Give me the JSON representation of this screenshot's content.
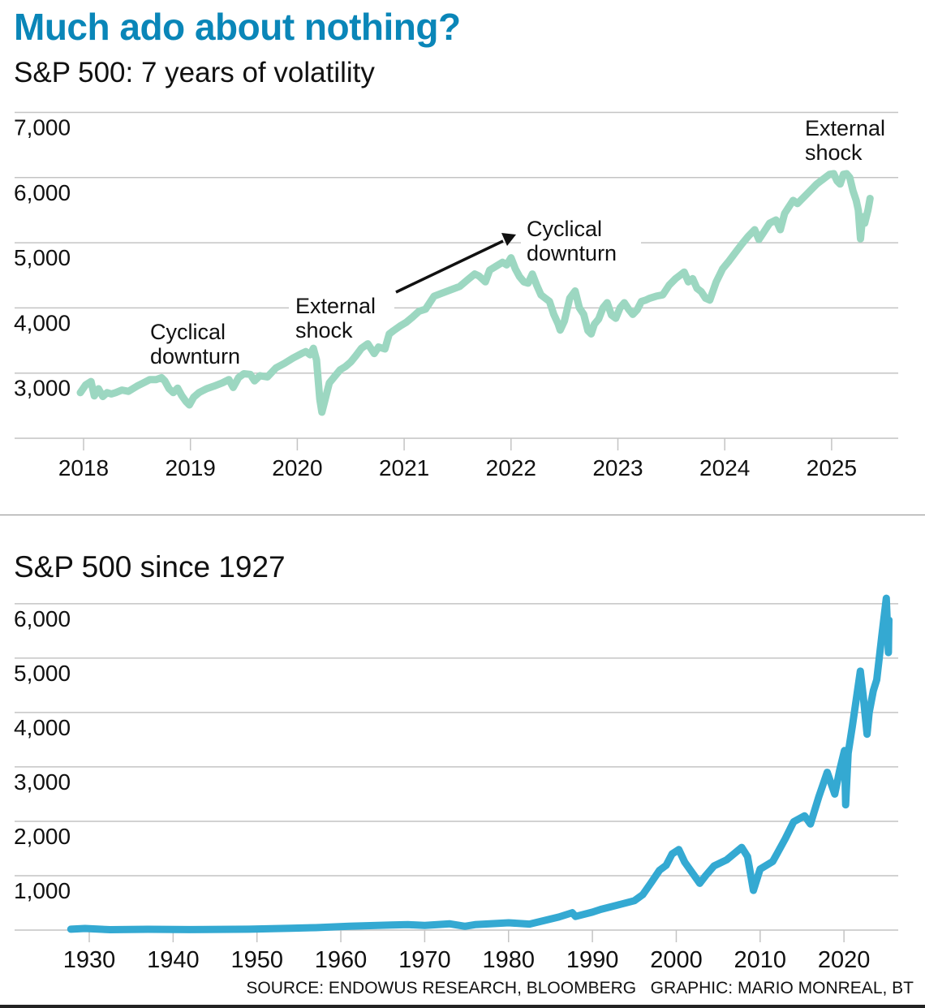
{
  "headline": "Much ado about nothing?",
  "footer": {
    "source": "SOURCE: ENDOWUS RESEARCH, BLOOMBERG",
    "graphic": "GRAPHIC: MARIO MONREAL, BT"
  },
  "colors": {
    "headline": "#0a86b8",
    "top_series": "#9cd7c1",
    "bottom_series": "#34a9d2",
    "gridline": "#c4c4c4",
    "text": "#111111"
  },
  "chart_data": [
    {
      "type": "line",
      "title": "S&P 500: 7 years of volatility",
      "xlabel": "",
      "ylabel": "",
      "grid": true,
      "legend": "none",
      "xlim": [
        2017.97,
        2025.38
      ],
      "ylim": [
        2000,
        7000
      ],
      "x_ticks": [
        2018,
        2019,
        2020,
        2021,
        2022,
        2023,
        2024,
        2025
      ],
      "x_tick_labels": [
        "2018",
        "2019",
        "2020",
        "2021",
        "2022",
        "2023",
        "2024",
        "2025"
      ],
      "y_ticks": [
        3000,
        4000,
        5000,
        6000,
        7000
      ],
      "y_tick_labels": [
        "3,000",
        "4,000",
        "5,000",
        "6,000",
        "7,000"
      ],
      "series": [
        {
          "name": "S&P 500",
          "x": [
            2017.97,
            2018.02,
            2018.07,
            2018.1,
            2018.14,
            2018.18,
            2018.22,
            2018.26,
            2018.3,
            2018.36,
            2018.42,
            2018.5,
            2018.56,
            2018.62,
            2018.68,
            2018.73,
            2018.76,
            2018.8,
            2018.84,
            2018.88,
            2018.92,
            2018.96,
            2018.99,
            2019.03,
            2019.08,
            2019.15,
            2019.22,
            2019.3,
            2019.36,
            2019.4,
            2019.45,
            2019.5,
            2019.56,
            2019.6,
            2019.65,
            2019.72,
            2019.8,
            2019.88,
            2019.96,
            2020.04,
            2020.08,
            2020.12,
            2020.15,
            2020.18,
            2020.21,
            2020.23,
            2020.26,
            2020.3,
            2020.35,
            2020.4,
            2020.45,
            2020.5,
            2020.55,
            2020.6,
            2020.66,
            2020.72,
            2020.76,
            2020.82,
            2020.86,
            2020.9,
            2020.96,
            2021.02,
            2021.08,
            2021.14,
            2021.2,
            2021.28,
            2021.36,
            2021.44,
            2021.52,
            2021.6,
            2021.66,
            2021.7,
            2021.76,
            2021.8,
            2021.86,
            2021.92,
            2021.96,
            2022.0,
            2022.04,
            2022.08,
            2022.12,
            2022.16,
            2022.2,
            2022.24,
            2022.28,
            2022.32,
            2022.36,
            2022.4,
            2022.44,
            2022.46,
            2022.5,
            2022.55,
            2022.6,
            2022.64,
            2022.68,
            2022.72,
            2022.75,
            2022.78,
            2022.82,
            2022.86,
            2022.9,
            2022.94,
            2022.98,
            2023.02,
            2023.06,
            2023.1,
            2023.14,
            2023.18,
            2023.22,
            2023.26,
            2023.3,
            2023.36,
            2023.42,
            2023.48,
            2023.54,
            2023.58,
            2023.62,
            2023.66,
            2023.7,
            2023.74,
            2023.78,
            2023.82,
            2023.86,
            2023.92,
            2023.98,
            2024.04,
            2024.1,
            2024.16,
            2024.22,
            2024.28,
            2024.32,
            2024.36,
            2024.42,
            2024.48,
            2024.52,
            2024.56,
            2024.6,
            2024.64,
            2024.68,
            2024.74,
            2024.8,
            2024.86,
            2024.9,
            2024.94,
            2024.98,
            2025.02,
            2025.05,
            2025.08,
            2025.11,
            2025.14,
            2025.17,
            2025.2,
            2025.23,
            2025.25,
            2025.27,
            2025.29,
            2025.31,
            2025.34,
            2025.36
          ],
          "y": [
            2700,
            2820,
            2870,
            2650,
            2760,
            2640,
            2700,
            2680,
            2700,
            2740,
            2720,
            2800,
            2850,
            2900,
            2900,
            2930,
            2880,
            2760,
            2700,
            2770,
            2650,
            2560,
            2510,
            2630,
            2700,
            2760,
            2800,
            2850,
            2900,
            2780,
            2930,
            2990,
            2980,
            2880,
            2960,
            2940,
            3080,
            3150,
            3230,
            3300,
            3330,
            3280,
            3380,
            3200,
            2600,
            2400,
            2590,
            2850,
            2950,
            3050,
            3100,
            3170,
            3270,
            3380,
            3450,
            3300,
            3400,
            3370,
            3600,
            3650,
            3720,
            3780,
            3860,
            3950,
            3980,
            4180,
            4230,
            4280,
            4330,
            4440,
            4520,
            4490,
            4400,
            4580,
            4640,
            4700,
            4660,
            4770,
            4600,
            4480,
            4400,
            4380,
            4520,
            4350,
            4200,
            4150,
            4100,
            3900,
            3760,
            3660,
            3800,
            4150,
            4260,
            4000,
            3900,
            3650,
            3600,
            3750,
            3830,
            4000,
            4080,
            3890,
            3840,
            4000,
            4080,
            3980,
            3900,
            3970,
            4100,
            4120,
            4150,
            4180,
            4200,
            4350,
            4450,
            4500,
            4550,
            4400,
            4450,
            4300,
            4250,
            4150,
            4120,
            4400,
            4600,
            4720,
            4850,
            4980,
            5100,
            5200,
            5050,
            5150,
            5300,
            5350,
            5200,
            5450,
            5550,
            5650,
            5600,
            5700,
            5800,
            5900,
            5950,
            6000,
            6050,
            6060,
            5950,
            5900,
            6050,
            6060,
            6000,
            5800,
            5650,
            5500,
            5060,
            5400,
            5300,
            5500,
            5680
          ]
        }
      ],
      "annotations": [
        {
          "text_lines": [
            "Cyclical",
            "downturn"
          ],
          "x": 2018.62,
          "y": 3700
        },
        {
          "text_lines": [
            "External",
            "shock"
          ],
          "x": 1999.0,
          "y": 0,
          "anchor_x": 2019.98,
          "anchor_y": 4050
        },
        {
          "text_lines": [
            "Cyclical",
            "downturn"
          ],
          "x": 2022.15,
          "y": 4900,
          "arrow_from": [
            2020.93,
            4230
          ],
          "arrow_to": [
            2022.04,
            5100
          ]
        },
        {
          "text_lines": [
            "External",
            "shock"
          ],
          "x": 2024.74,
          "y": 6580
        }
      ]
    },
    {
      "type": "line",
      "title": "S&P 500 since 1927",
      "xlabel": "",
      "ylabel": "",
      "grid": true,
      "legend": "none",
      "xlim": [
        1927.8,
        2025.4
      ],
      "ylim": [
        0,
        6000
      ],
      "x_ticks": [
        1930,
        1940,
        1950,
        1960,
        1970,
        1980,
        1990,
        2000,
        2010,
        2020
      ],
      "x_tick_labels": [
        "1930",
        "1940",
        "1950",
        "1960",
        "1970",
        "1980",
        "1990",
        "2000",
        "2010",
        "2020"
      ],
      "y_ticks": [
        1000,
        2000,
        3000,
        4000,
        5000,
        6000
      ],
      "y_tick_labels": [
        "1,000",
        "2,000",
        "3,000",
        "4,000",
        "5,000",
        "6,000"
      ],
      "series": [
        {
          "name": "S&P 500",
          "x": [
            1927.8,
            1929.5,
            1932.5,
            1937,
            1942,
            1949,
            1954,
            1957,
            1961,
            1966,
            1968,
            1970,
            1973,
            1974.8,
            1976,
            1980,
            1982.5,
            1984,
            1986,
            1987.6,
            1988,
            1990,
            1991,
            1993,
            1995,
            1996,
            1997,
            1998,
            1998.8,
            1999.5,
            2000.3,
            2001,
            2001.7,
            2002.8,
            2003.5,
            2004.5,
            2006,
            2007.8,
            2008.5,
            2009.2,
            2010,
            2011.5,
            2012,
            2013,
            2014,
            2015.3,
            2016,
            2017,
            2018,
            2018.9,
            2019.5,
            2020.05,
            2020.2,
            2020.5,
            2021,
            2021.95,
            2022.3,
            2022.75,
            2023,
            2023.5,
            2023.9,
            2024.5,
            2025.05,
            2025.2,
            2025.3,
            2025.36
          ],
          "y": [
            17,
            30,
            7,
            15,
            9,
            16,
            35,
            45,
            70,
            92,
            100,
            85,
            115,
            70,
            100,
            135,
            110,
            165,
            240,
            320,
            250,
            330,
            380,
            460,
            540,
            650,
            870,
            1100,
            1190,
            1400,
            1480,
            1250,
            1100,
            860,
            1000,
            1180,
            1290,
            1520,
            1350,
            730,
            1120,
            1260,
            1400,
            1680,
            1990,
            2100,
            1950,
            2450,
            2900,
            2500,
            2950,
            3300,
            2300,
            3250,
            3750,
            4760,
            4300,
            3600,
            4000,
            4400,
            4600,
            5400,
            6100,
            5500,
            5100,
            5700
          ]
        }
      ]
    }
  ]
}
